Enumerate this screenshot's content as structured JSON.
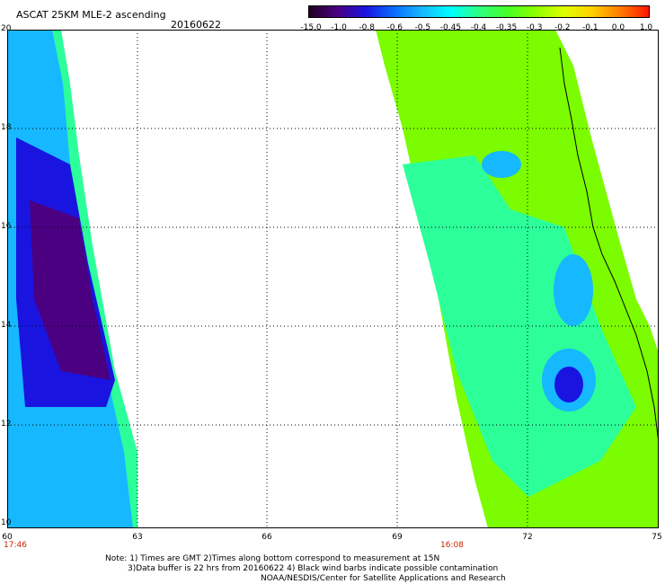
{
  "header": {
    "title": "ASCAT 25KM MLE-2 ascending",
    "date": "20160622"
  },
  "colorbar": {
    "tick_labels": [
      "-15.0",
      "-1.0",
      "-0.8",
      "-0.6",
      "-0.5",
      "-0.45",
      "-0.4",
      "-0.35",
      "-0.3",
      "-0.2",
      "-0.1",
      "0.0",
      "1.0"
    ],
    "colors": [
      "#200020",
      "#4b0082",
      "#1a14e0",
      "#0a6cff",
      "#16b8ff",
      "#00ffff",
      "#2cff82",
      "#46ff28",
      "#8cff00",
      "#e0ff00",
      "#ffd000",
      "#ff7a00",
      "#ff1400"
    ]
  },
  "map": {
    "lat_labels": [
      "20",
      "18",
      "16",
      "14",
      "12",
      "10"
    ],
    "lon_labels": [
      "60",
      "63",
      "66",
      "69",
      "72",
      "75"
    ],
    "time_labels": [
      "17:46",
      "16:08"
    ],
    "colors": {
      "swath_green": "#7cfc00",
      "swath_cyan": "#2cff9a",
      "swath_blue": "#1a14e0",
      "swath_purple": "#4b0082",
      "land_line": "#000000",
      "grid": "#000000"
    }
  },
  "notes": {
    "line1": "Note: 1) Times are GMT 2)Times along bottom correspond to measurement at 15N",
    "line2": "3)Data buffer is 22 hrs from 20160622 4) Black wind barbs indicate possible contamination",
    "line3": "NOAA/NESDIS/Center for Satellite Applications and Research"
  }
}
